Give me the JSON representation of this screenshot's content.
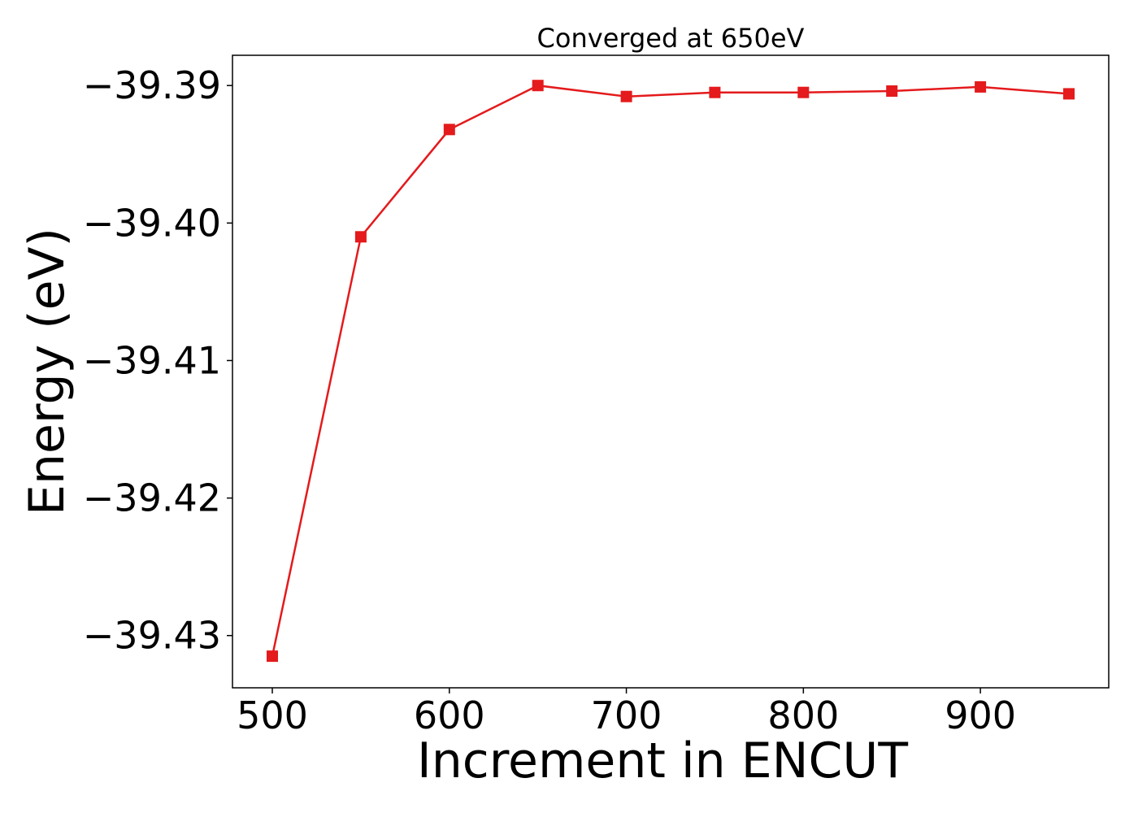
{
  "chart_data": {
    "type": "line",
    "title": "Converged at 650eV",
    "xlabel": "Increment in ENCUT",
    "ylabel": "Energy (eV)",
    "x": [
      500,
      550,
      600,
      650,
      700,
      750,
      800,
      850,
      900,
      950
    ],
    "series": [
      {
        "values": [
          -39.4315,
          -39.401,
          -39.3932,
          -39.39,
          -39.3908,
          -39.3905,
          -39.3905,
          -39.3904,
          -39.3901,
          -39.3906
        ],
        "color": "#e41a1c",
        "marker": "square"
      }
    ],
    "xlim": [
      477.5,
      972.5
    ],
    "ylim": [
      -39.4338,
      -39.3878
    ],
    "xticks": [
      500,
      600,
      700,
      800,
      900
    ],
    "xtick_labels": [
      "500",
      "600",
      "700",
      "800",
      "900"
    ],
    "yticks": [
      -39.39,
      -39.4,
      -39.41,
      -39.42,
      -39.43
    ],
    "ytick_labels": [
      "−39.39",
      "−39.40",
      "−39.41",
      "−39.42",
      "−39.43"
    ],
    "grid": false,
    "legend": false
  }
}
